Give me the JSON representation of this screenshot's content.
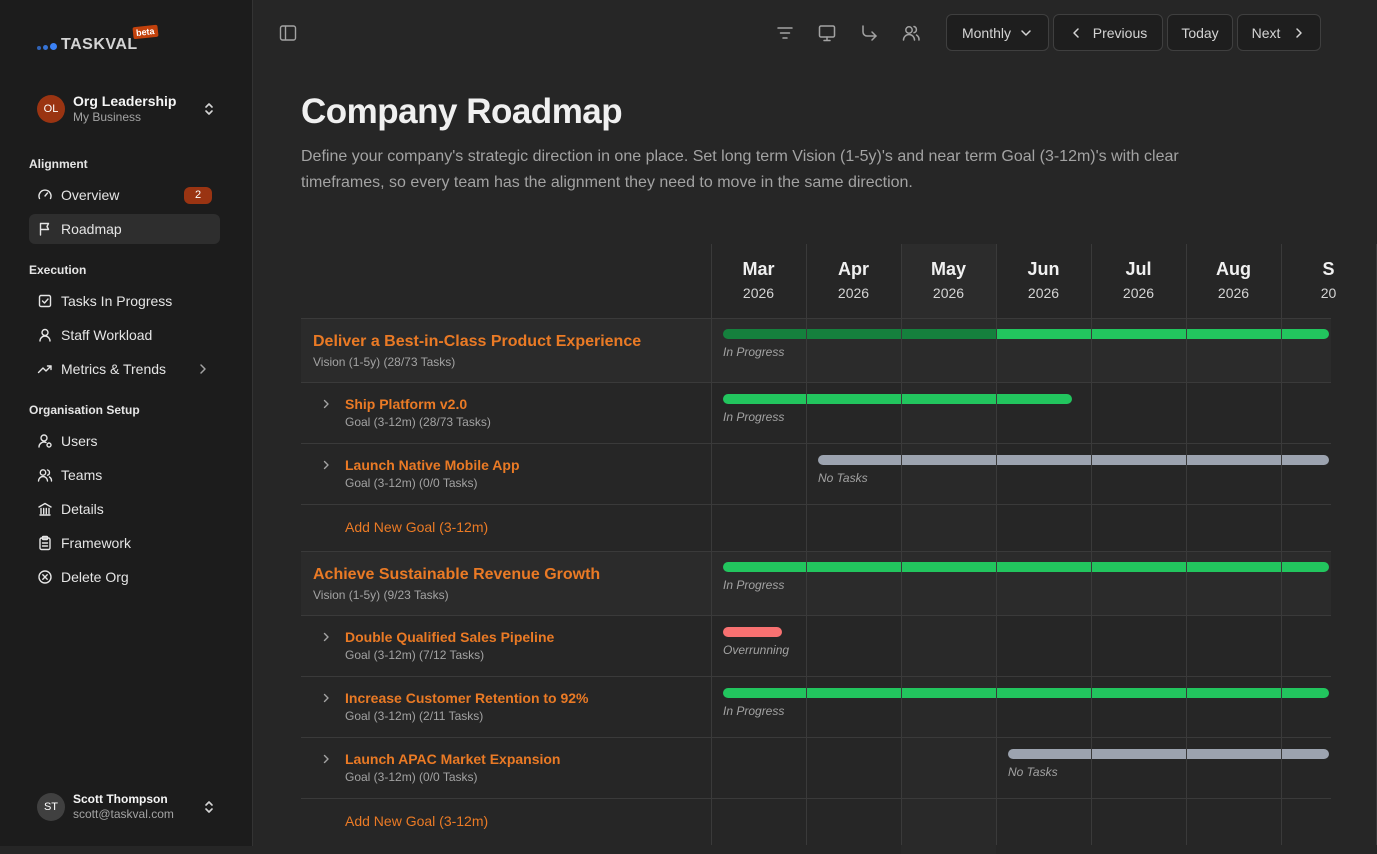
{
  "app": {
    "logo_text": "TASKVAL",
    "beta_label": "beta"
  },
  "org": {
    "initials": "OL",
    "name": "Org Leadership",
    "subtitle": "My Business"
  },
  "sidebar": {
    "sections": [
      {
        "label": "Alignment",
        "items": [
          {
            "label": "Overview",
            "icon": "gauge-icon",
            "badge": "2"
          },
          {
            "label": "Roadmap",
            "icon": "flag-icon",
            "active": true
          }
        ]
      },
      {
        "label": "Execution",
        "items": [
          {
            "label": "Tasks In Progress",
            "icon": "checkbox-icon"
          },
          {
            "label": "Staff Workload",
            "icon": "user-icon"
          },
          {
            "label": "Metrics & Trends",
            "icon": "trend-icon",
            "has_submenu": true
          }
        ]
      },
      {
        "label": "Organisation Setup",
        "items": [
          {
            "label": "Users",
            "icon": "user-cog-icon"
          },
          {
            "label": "Teams",
            "icon": "users-icon"
          },
          {
            "label": "Details",
            "icon": "building-icon"
          },
          {
            "label": "Framework",
            "icon": "clipboard-icon"
          },
          {
            "label": "Delete Org",
            "icon": "circle-x-icon"
          }
        ]
      }
    ]
  },
  "user": {
    "initials": "ST",
    "name": "Scott Thompson",
    "email": "scott@taskval.com"
  },
  "toolbar": {
    "view_select": "Monthly",
    "previous_label": "Previous",
    "today_label": "Today",
    "next_label": "Next"
  },
  "page": {
    "title": "Company Roadmap",
    "description": "Define your company's strategic direction in one place. Set long term Vision (1-5y)'s and near term Goal (3-12m)'s with clear timeframes, so every team has the alignment they need to move in the same direction."
  },
  "timeline": {
    "months": [
      {
        "name": "Mar",
        "year": "2026"
      },
      {
        "name": "Apr",
        "year": "2026"
      },
      {
        "name": "May",
        "year": "2026",
        "current": true
      },
      {
        "name": "Jun",
        "year": "2026"
      },
      {
        "name": "Jul",
        "year": "2026"
      },
      {
        "name": "Aug",
        "year": "2026"
      },
      {
        "name": "S",
        "year": "20"
      }
    ],
    "rows": [
      {
        "kind": "vision",
        "title": "Deliver a Best-in-Class Product Experience",
        "sub": "Vision (1-5y) (28/73 Tasks)",
        "status": "In Progress",
        "bar_start_month": 0,
        "bar_end_month": 6.5,
        "progress_split_month": 3,
        "color": "#22c55e",
        "done_color": "#15803d"
      },
      {
        "kind": "goal",
        "title": "Ship Platform v2.0",
        "sub": "Goal (3-12m) (28/73 Tasks)",
        "status": "In Progress",
        "bar_start_month": 0,
        "bar_end_month": 3.8,
        "color": "#22c55e"
      },
      {
        "kind": "goal",
        "title": "Launch Native Mobile App",
        "sub": "Goal (3-12m) (0/0 Tasks)",
        "status": "No Tasks",
        "bar_start_month": 1,
        "bar_end_month": 6.5,
        "color": "#9ca3af"
      },
      {
        "kind": "add",
        "label": "Add New Goal (3-12m)"
      },
      {
        "kind": "vision",
        "title": "Achieve Sustainable Revenue Growth",
        "sub": "Vision (1-5y) (9/23 Tasks)",
        "status": "In Progress",
        "bar_start_month": 0,
        "bar_end_month": 6.5,
        "color": "#22c55e"
      },
      {
        "kind": "goal",
        "title": "Double Qualified Sales Pipeline",
        "sub": "Goal (3-12m) (7/12 Tasks)",
        "status": "Overrunning",
        "bar_start_month": 0,
        "bar_end_month": 0.75,
        "color": "#f87171"
      },
      {
        "kind": "goal",
        "title": "Increase Customer Retention to 92%",
        "sub": "Goal (3-12m) (2/11 Tasks)",
        "status": "In Progress",
        "bar_start_month": 0,
        "bar_end_month": 6.5,
        "color": "#22c55e"
      },
      {
        "kind": "goal",
        "title": "Launch APAC Market Expansion",
        "sub": "Goal (3-12m) (0/0 Tasks)",
        "status": "No Tasks",
        "bar_start_month": 3,
        "bar_end_month": 6.5,
        "color": "#9ca3af"
      },
      {
        "kind": "add",
        "label": "Add New Goal (3-12m)"
      }
    ]
  }
}
